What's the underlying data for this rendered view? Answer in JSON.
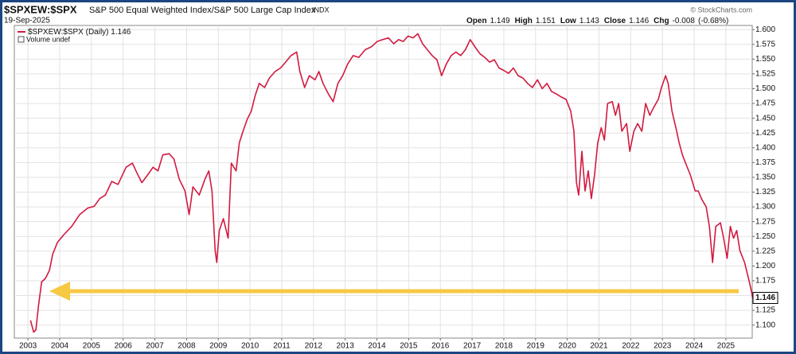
{
  "chart_data": {
    "type": "line",
    "title": "$SPXEW:$SPX",
    "subtitle": "S&P 500 Equal Weighted Index/S&P 500 Large Cap Index",
    "exchange": "INDX",
    "date": "19-Sep-2025",
    "credit": "© StockCharts.com",
    "quote": [
      {
        "label": "Open",
        "value": 1.149
      },
      {
        "label": "High",
        "value": 1.151
      },
      {
        "label": "Low",
        "value": 1.143
      },
      {
        "label": "Close",
        "value": 1.146
      }
    ],
    "change": {
      "label": "Chg",
      "value": -0.008,
      "percent": "(-0.68%)"
    },
    "last_value": 1.146,
    "volume_label": "Volume undef",
    "grid": true,
    "xlim": [
      2002.57,
      2025.83
    ],
    "xticks": [
      2003,
      2004,
      2005,
      2006,
      2007,
      2008,
      2009,
      2010,
      2011,
      2012,
      2013,
      2014,
      2015,
      2016,
      2017,
      2018,
      2019,
      2020,
      2021,
      2022,
      2023,
      2024,
      2025
    ],
    "ylim": [
      1.078,
      1.607
    ],
    "yticks": [
      {
        "value": 1.1,
        "label": "1.100"
      },
      1.125,
      {
        "value": 1.15,
        "label": "1.150"
      },
      1.175,
      {
        "value": 1.2,
        "label": "1.200"
      },
      1.225,
      {
        "value": 1.25,
        "label": "1.250"
      },
      1.275,
      {
        "value": 1.3,
        "label": "1.300"
      },
      1.325,
      {
        "value": 1.35,
        "label": "1.350"
      },
      1.375,
      {
        "value": 1.4,
        "label": "1.400"
      },
      1.425,
      {
        "value": 1.45,
        "label": "1.450"
      },
      1.475,
      {
        "value": 1.5,
        "label": "1.500"
      },
      1.525,
      {
        "value": 1.55,
        "label": "1.550"
      },
      1.575,
      {
        "value": 1.6,
        "label": "1.600"
      }
    ],
    "x": [
      2003.08,
      2003.18,
      2003.25,
      2003.33,
      2003.43,
      2003.55,
      2003.68,
      2003.78,
      2003.93,
      2004.13,
      2004.38,
      2004.63,
      2004.88,
      2005.09,
      2005.26,
      2005.44,
      2005.64,
      2005.84,
      2006.09,
      2006.29,
      2006.44,
      2006.59,
      2006.77,
      2006.94,
      2007.1,
      2007.25,
      2007.45,
      2007.6,
      2007.77,
      2007.95,
      2008.08,
      2008.2,
      2008.4,
      2008.58,
      2008.7,
      2008.8,
      2008.9,
      2008.95,
      2009.03,
      2009.16,
      2009.31,
      2009.41,
      2009.56,
      2009.66,
      2009.78,
      2009.91,
      2010.04,
      2010.16,
      2010.29,
      2010.46,
      2010.61,
      2010.79,
      2010.96,
      2011.12,
      2011.29,
      2011.47,
      2011.57,
      2011.72,
      2011.87,
      2012.05,
      2012.17,
      2012.3,
      2012.47,
      2012.62,
      2012.77,
      2012.92,
      2013.08,
      2013.25,
      2013.43,
      2013.63,
      2013.83,
      2014.01,
      2014.18,
      2014.36,
      2014.53,
      2014.68,
      2014.83,
      2014.98,
      2015.14,
      2015.29,
      2015.44,
      2015.59,
      2015.74,
      2015.89,
      2016.04,
      2016.19,
      2016.34,
      2016.49,
      2016.64,
      2016.79,
      2016.94,
      2017.1,
      2017.25,
      2017.4,
      2017.55,
      2017.7,
      2017.85,
      2018.0,
      2018.15,
      2018.3,
      2018.45,
      2018.6,
      2018.75,
      2018.9,
      2019.06,
      2019.21,
      2019.36,
      2019.51,
      2019.66,
      2019.81,
      2019.96,
      2020.11,
      2020.21,
      2020.29,
      2020.36,
      2020.46,
      2020.56,
      2020.66,
      2020.76,
      2020.86,
      2020.96,
      2021.07,
      2021.17,
      2021.27,
      2021.42,
      2021.52,
      2021.62,
      2021.72,
      2021.87,
      2021.97,
      2022.1,
      2022.22,
      2022.35,
      2022.47,
      2022.6,
      2022.72,
      2022.87,
      2022.97,
      2023.1,
      2023.18,
      2023.3,
      2023.45,
      2023.53,
      2023.63,
      2023.73,
      2023.88,
      2024.03,
      2024.13,
      2024.23,
      2024.38,
      2024.48,
      2024.58,
      2024.68,
      2024.83,
      2024.93,
      2025.04,
      2025.14,
      2025.24,
      2025.34,
      2025.44,
      2025.59,
      2025.74,
      2025.81,
      2025.84
    ],
    "series": [
      {
        "name": "$SPXEW:$SPX (Daily)",
        "color": "#d2193f",
        "values": [
          1.108,
          1.088,
          1.092,
          1.132,
          1.173,
          1.179,
          1.193,
          1.22,
          1.24,
          1.253,
          1.267,
          1.287,
          1.298,
          1.301,
          1.314,
          1.32,
          1.343,
          1.338,
          1.367,
          1.374,
          1.357,
          1.341,
          1.354,
          1.367,
          1.361,
          1.388,
          1.39,
          1.381,
          1.347,
          1.327,
          1.287,
          1.334,
          1.32,
          1.347,
          1.361,
          1.327,
          1.226,
          1.206,
          1.26,
          1.28,
          1.247,
          1.374,
          1.361,
          1.408,
          1.428,
          1.448,
          1.462,
          1.488,
          1.509,
          1.502,
          1.518,
          1.529,
          1.535,
          1.545,
          1.556,
          1.562,
          1.529,
          1.502,
          1.522,
          1.515,
          1.529,
          1.509,
          1.491,
          1.478,
          1.509,
          1.522,
          1.542,
          1.556,
          1.553,
          1.566,
          1.571,
          1.58,
          1.583,
          1.586,
          1.576,
          1.583,
          1.58,
          1.589,
          1.586,
          1.593,
          1.576,
          1.566,
          1.556,
          1.549,
          1.522,
          1.542,
          1.556,
          1.562,
          1.556,
          1.566,
          1.583,
          1.57,
          1.559,
          1.553,
          1.545,
          1.549,
          1.535,
          1.531,
          1.526,
          1.535,
          1.522,
          1.518,
          1.509,
          1.502,
          1.515,
          1.5,
          1.509,
          1.495,
          1.491,
          1.486,
          1.482,
          1.462,
          1.428,
          1.341,
          1.32,
          1.394,
          1.327,
          1.361,
          1.314,
          1.354,
          1.408,
          1.434,
          1.413,
          1.475,
          1.478,
          1.455,
          1.475,
          1.428,
          1.441,
          1.394,
          1.428,
          1.441,
          1.428,
          1.475,
          1.455,
          1.468,
          1.482,
          1.502,
          1.522,
          1.509,
          1.462,
          1.428,
          1.408,
          1.388,
          1.374,
          1.354,
          1.327,
          1.327,
          1.314,
          1.3,
          1.267,
          1.206,
          1.267,
          1.273,
          1.247,
          1.213,
          1.267,
          1.247,
          1.26,
          1.226,
          1.206,
          1.173,
          1.156,
          1.146
        ]
      }
    ]
  }
}
